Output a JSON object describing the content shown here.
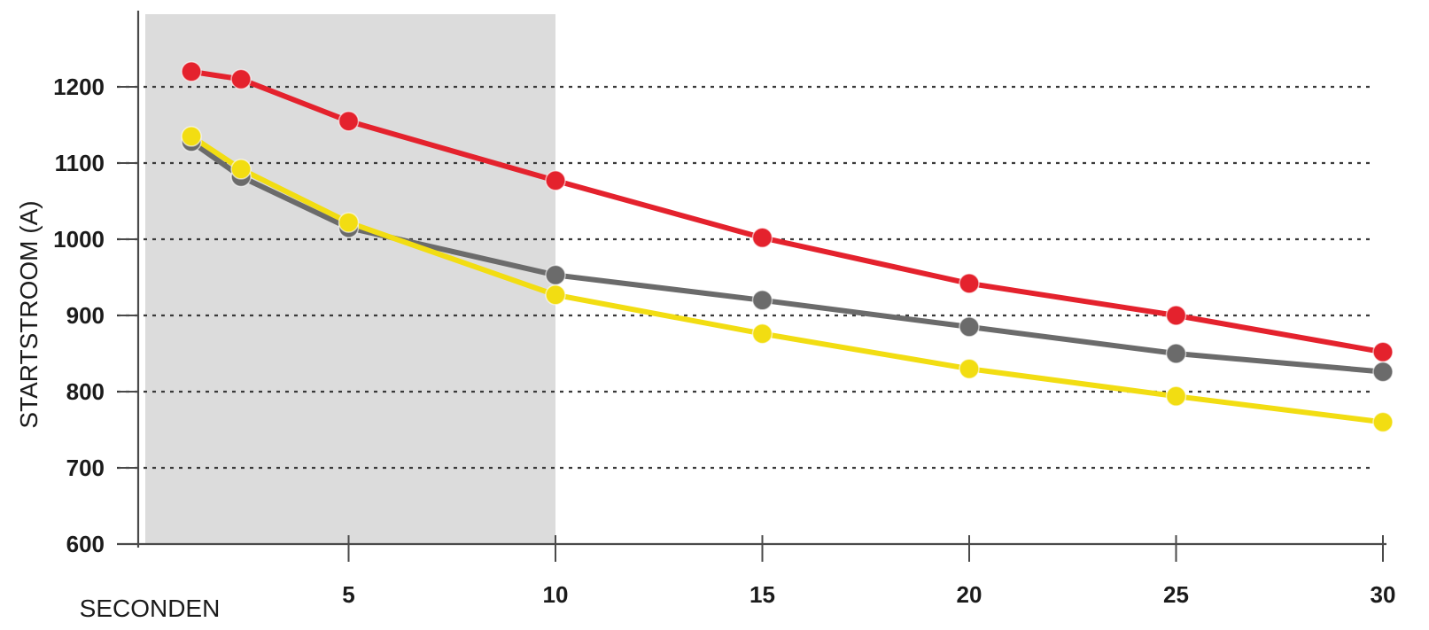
{
  "chart_data": {
    "type": "line",
    "ylabel": "STARTSTROOM (A)",
    "xlabel": "SECONDEN",
    "xlim": [
      0,
      30
    ],
    "ylim": [
      600,
      1200
    ],
    "x_ticks": [
      5,
      10,
      15,
      20,
      25,
      30
    ],
    "y_ticks": [
      600,
      700,
      800,
      900,
      1000,
      1100,
      1200
    ],
    "grid": true,
    "shaded_region": {
      "x_from": 0,
      "x_to": 10,
      "color": "#dcdcdc"
    },
    "series": [
      {
        "color": "#e4222d",
        "points": [
          [
            1.2,
            1220
          ],
          [
            2.4,
            1210
          ],
          [
            5,
            1155
          ],
          [
            10,
            1077
          ],
          [
            15,
            1002
          ],
          [
            20,
            942
          ],
          [
            25,
            900
          ],
          [
            30,
            852
          ]
        ]
      },
      {
        "color": "#6b6b6b",
        "points": [
          [
            1.2,
            1128
          ],
          [
            2.4,
            1082
          ],
          [
            5,
            1015
          ],
          [
            10,
            953
          ],
          [
            15,
            920
          ],
          [
            20,
            885
          ],
          [
            25,
            850
          ],
          [
            30,
            826
          ]
        ]
      },
      {
        "color": "#f2dd12",
        "points": [
          [
            1.2,
            1135
          ],
          [
            2.4,
            1092
          ],
          [
            5,
            1022
          ],
          [
            10,
            927
          ],
          [
            15,
            876
          ],
          [
            20,
            830
          ],
          [
            25,
            794
          ],
          [
            30,
            760
          ]
        ]
      }
    ]
  }
}
